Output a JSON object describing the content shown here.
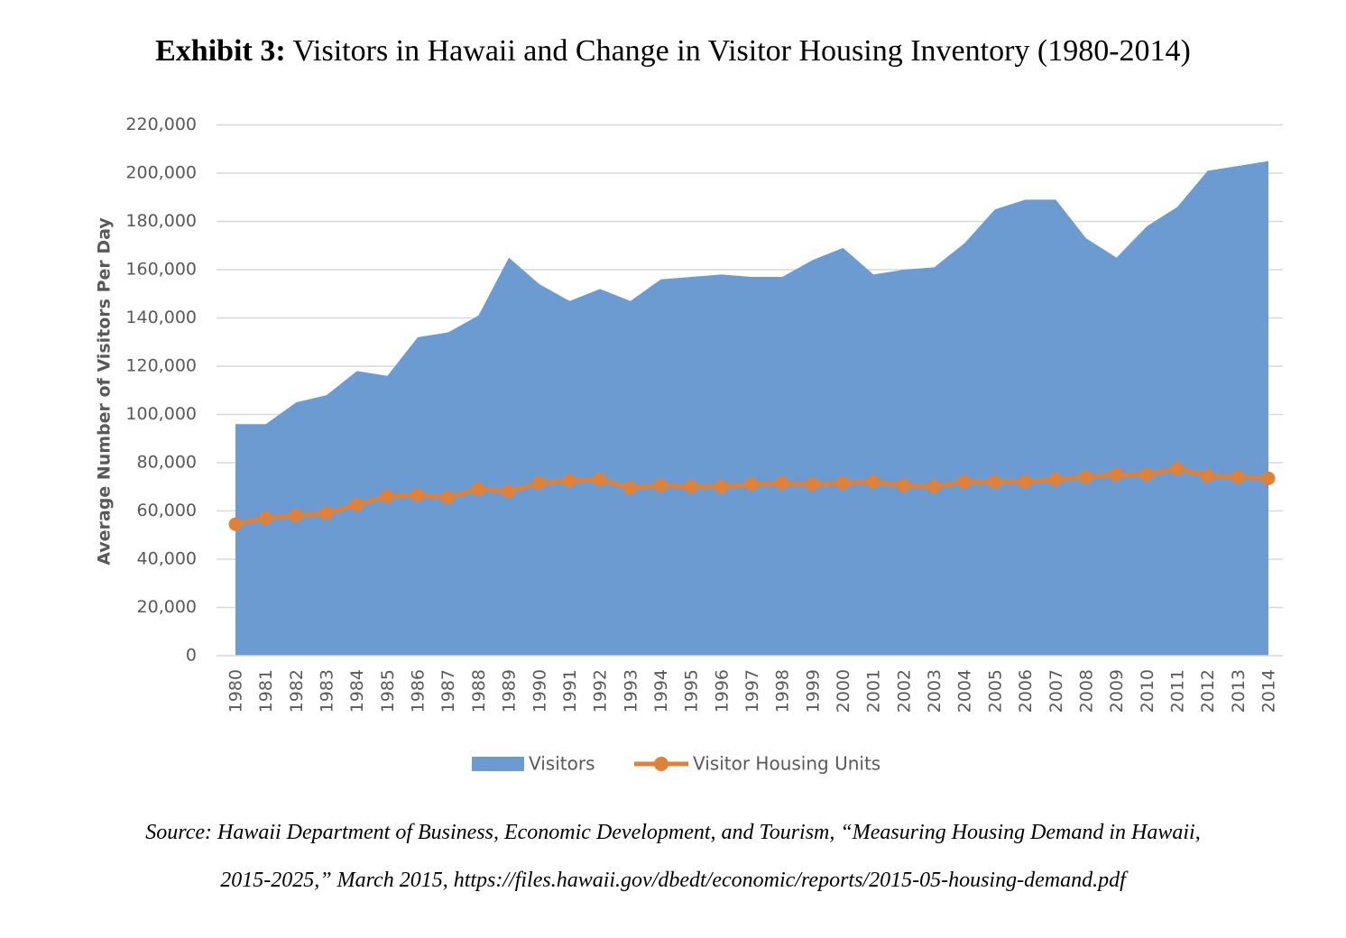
{
  "header": {
    "title_bold": "Exhibit 3:",
    "title_rest": " Visitors in Hawaii and Change in Visitor Housing Inventory (1980-2014)"
  },
  "chart_data": {
    "type": "area",
    "xlabel": "",
    "ylabel": "Average Number of Visitors Per Day",
    "ylim": [
      0,
      220000
    ],
    "ytick_labels": [
      "0",
      "20,000",
      "40,000",
      "60,000",
      "80,000",
      "100,000",
      "120,000",
      "140,000",
      "160,000",
      "180,000",
      "200,000",
      "220,000"
    ],
    "categories": [
      "1980",
      "1981",
      "1982",
      "1983",
      "1984",
      "1985",
      "1986",
      "1987",
      "1988",
      "1989",
      "1990",
      "1991",
      "1992",
      "1993",
      "1994",
      "1995",
      "1996",
      "1997",
      "1998",
      "1999",
      "2000",
      "2001",
      "2002",
      "2003",
      "2004",
      "2005",
      "2006",
      "2007",
      "2008",
      "2009",
      "2010",
      "2011",
      "2012",
      "2013",
      "2014"
    ],
    "series": [
      {
        "name": "Visitors",
        "type": "area",
        "color": "#6b9bd1",
        "values": [
          96000,
          96000,
          105000,
          108000,
          118000,
          116000,
          132000,
          134000,
          141000,
          165000,
          154000,
          147000,
          152000,
          147000,
          156000,
          157000,
          158000,
          157000,
          157000,
          164000,
          169000,
          158000,
          160000,
          161000,
          171000,
          185000,
          189000,
          189000,
          173000,
          165000,
          178000,
          186000,
          201000,
          203000,
          205000
        ]
      },
      {
        "name": "Visitor Housing Units",
        "type": "line",
        "color": "#e0813a",
        "values": [
          54500,
          57000,
          58000,
          59000,
          62500,
          66000,
          66500,
          65500,
          69000,
          68000,
          71500,
          72500,
          73000,
          69500,
          70500,
          70000,
          70000,
          71000,
          71500,
          71000,
          71500,
          72000,
          70500,
          70000,
          72000,
          72000,
          72000,
          73000,
          74000,
          75000,
          75000,
          77500,
          74500,
          74000,
          73500
        ]
      }
    ],
    "grid": true,
    "legend_position": "bottom"
  },
  "source": {
    "line1": "Source: Hawaii Department of Business, Economic Development, and Tourism, “Measuring Housing Demand in Hawaii,",
    "line2": "2015-2025,” March 2015, https://files.hawaii.gov/dbedt/economic/reports/2015-05-housing-demand.pdf"
  }
}
